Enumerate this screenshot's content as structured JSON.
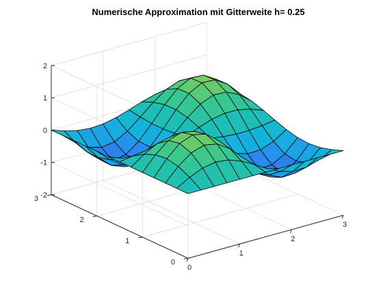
{
  "chart_data": {
    "type": "surface",
    "title": "Numerische Approximation mit Gitterweite h= 0.25",
    "xlabel": "",
    "ylabel": "",
    "zlabel": "",
    "xlim": [
      0,
      3
    ],
    "ylim": [
      0,
      3
    ],
    "zlim": [
      -2,
      2
    ],
    "x_ticks": [
      "0",
      "1",
      "2",
      "3"
    ],
    "y_ticks": [
      "0",
      "1",
      "2",
      "3"
    ],
    "z_ticks": [
      "-2",
      "-1",
      "0",
      "1",
      "2"
    ],
    "x": [
      0,
      0.25,
      0.5,
      0.75,
      1,
      1.25,
      1.5,
      1.75,
      2,
      2.25,
      2.5,
      2.75,
      3
    ],
    "y": [
      0,
      0.25,
      0.5,
      0.75,
      1,
      1.25,
      1.5,
      1.75,
      2,
      2.25,
      2.5,
      2.75,
      3
    ],
    "z_function": "sin(2x)*sin(2y)",
    "grid": true,
    "colormap": "parula",
    "edge_color": "#000000"
  }
}
